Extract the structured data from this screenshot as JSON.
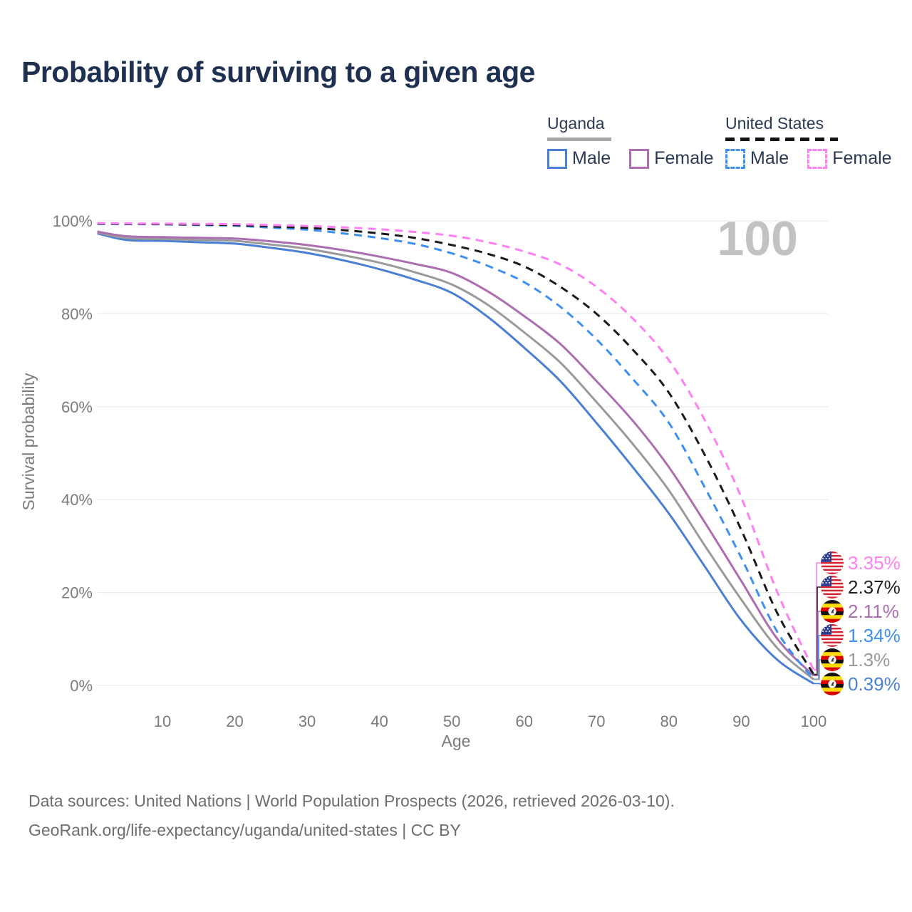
{
  "title": "Probability of surviving to a given age",
  "watermark": "100",
  "legend": {
    "groups": [
      {
        "country": "Uganda",
        "line_style": "solid",
        "underline_color": "#a6a6a6",
        "items": [
          {
            "label": "Male",
            "color": "#4a7fd4",
            "dashed": false
          },
          {
            "label": "Female",
            "color": "#ad6db1",
            "dashed": false
          }
        ]
      },
      {
        "country": "United States",
        "line_style": "dashed",
        "underline_color": "#141414",
        "items": [
          {
            "label": "Male",
            "color": "#3e90f0",
            "dashed": true
          },
          {
            "label": "Female",
            "color": "#ff80f2",
            "dashed": true
          }
        ]
      }
    ]
  },
  "chart_data": {
    "type": "line",
    "title": "Probability of surviving to a given age",
    "xlabel": "Age",
    "ylabel": "Survival probability",
    "xlim": [
      1,
      100
    ],
    "ylim": [
      0,
      100
    ],
    "grid": "horizontal",
    "x_ticks": [
      10,
      20,
      30,
      40,
      50,
      60,
      70,
      80,
      90,
      100
    ],
    "y_ticks": [
      {
        "value": 0,
        "label": "0%"
      },
      {
        "value": 20,
        "label": "20%"
      },
      {
        "value": 40,
        "label": "40%"
      },
      {
        "value": 60,
        "label": "60%"
      },
      {
        "value": 80,
        "label": "80%"
      },
      {
        "value": 100,
        "label": "100%"
      }
    ],
    "x": [
      1,
      5,
      10,
      15,
      20,
      25,
      30,
      35,
      40,
      45,
      50,
      55,
      60,
      65,
      70,
      75,
      80,
      85,
      90,
      95,
      100
    ],
    "series": [
      {
        "name": "Uganda — Male",
        "color": "#4a7fd4",
        "dashed": false,
        "values": [
          97.3,
          95.9,
          95.7,
          95.4,
          95.1,
          94.2,
          93.1,
          91.5,
          89.6,
          87.3,
          84.5,
          79.3,
          72.7,
          65.5,
          56.5,
          47.0,
          37.0,
          25.5,
          14.0,
          5.5,
          0.39
        ]
      },
      {
        "name": "Uganda — Both sexes",
        "color": "#9a9a9a",
        "dashed": false,
        "values": [
          97.5,
          96.3,
          96.1,
          95.9,
          95.7,
          94.9,
          94.0,
          92.6,
          91.0,
          88.9,
          86.3,
          81.9,
          76.0,
          69.5,
          61.0,
          52.0,
          42.0,
          30.0,
          18.5,
          8.0,
          1.3
        ]
      },
      {
        "name": "Uganda — Female",
        "color": "#ad6db1",
        "dashed": false,
        "values": [
          97.7,
          96.7,
          96.5,
          96.35,
          96.2,
          95.6,
          94.8,
          93.7,
          92.3,
          90.7,
          88.8,
          84.8,
          79.5,
          73.5,
          65.5,
          57.0,
          47.0,
          35.0,
          22.5,
          10.0,
          2.11
        ]
      },
      {
        "name": "United States — Male",
        "color": "#3e90f0",
        "dashed": true,
        "values": [
          99.35,
          99.3,
          99.25,
          99.1,
          98.95,
          98.55,
          98.1,
          97.3,
          96.3,
          95.0,
          93.0,
          90.3,
          86.8,
          81.5,
          74.5,
          66.0,
          56.5,
          42.5,
          27.5,
          11.5,
          1.34
        ]
      },
      {
        "name": "United States — Both sexes",
        "color": "#1a1a1a",
        "dashed": true,
        "values": [
          99.4,
          99.35,
          99.3,
          99.2,
          99.1,
          98.8,
          98.5,
          98.0,
          97.3,
          96.3,
          94.8,
          92.9,
          90.2,
          85.8,
          80.0,
          72.3,
          63.0,
          49.5,
          33.5,
          15.5,
          2.37
        ]
      },
      {
        "name": "United States — Female",
        "color": "#ff80f2",
        "dashed": true,
        "values": [
          99.5,
          99.45,
          99.4,
          99.35,
          99.3,
          99.1,
          98.9,
          98.6,
          98.2,
          97.6,
          96.8,
          95.4,
          93.4,
          90.6,
          85.8,
          79.0,
          70.0,
          57.0,
          40.5,
          20.0,
          3.35
        ]
      }
    ]
  },
  "end_labels": [
    {
      "flag": "us-flag",
      "value": "3.35%",
      "color": "#ff80f2",
      "end_pct": 3.35,
      "series": "United States — Female"
    },
    {
      "flag": "us-flag",
      "value": "2.37%",
      "color": "#222222",
      "end_pct": 2.37,
      "series": "United States — Both sexes"
    },
    {
      "flag": "uganda-flag",
      "value": "2.11%",
      "color": "#ad6db1",
      "end_pct": 2.11,
      "series": "Uganda — Female"
    },
    {
      "flag": "us-flag",
      "value": "1.34%",
      "color": "#3e90f0",
      "end_pct": 1.34,
      "series": "United States — Male"
    },
    {
      "flag": "uganda-flag",
      "value": "1.3%",
      "color": "#9a9a9a",
      "end_pct": 1.3,
      "series": "Uganda — Both sexes"
    },
    {
      "flag": "uganda-flag",
      "value": "0.39%",
      "color": "#4a7fd4",
      "end_pct": 0.39,
      "series": "Uganda — Male"
    }
  ],
  "footer": {
    "line1": "Data sources: United Nations | World Population Prospects (2026, retrieved 2026-03-10).",
    "line2": "GeoRank.org/life-expectancy/uganda/united-states | CC BY"
  }
}
